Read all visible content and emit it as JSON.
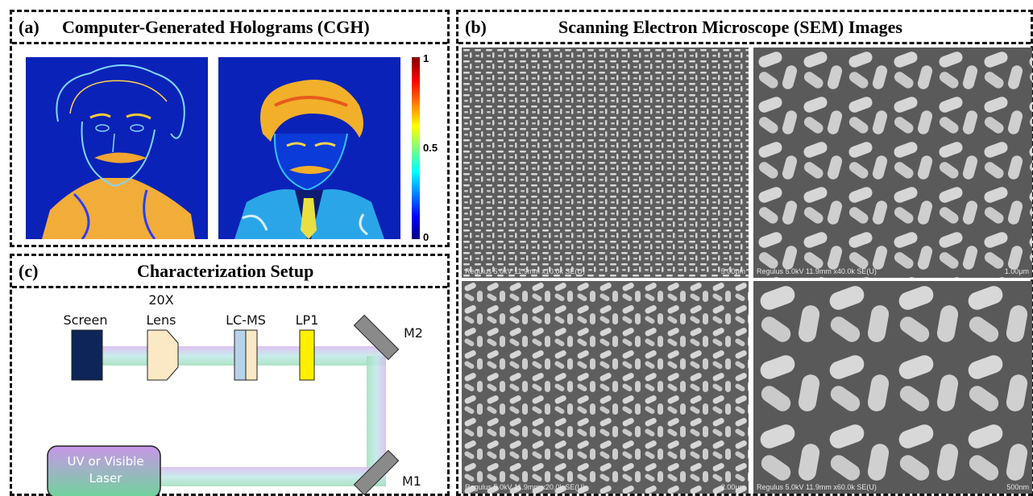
{
  "panel_a": {
    "tag": "(a)",
    "title": "Computer-Generated Holograms (CGH)",
    "colorbar_ticks": [
      "1",
      "0.5",
      "0"
    ]
  },
  "panel_b": {
    "tag": "(b)",
    "title": "Scanning Electron Microscope (SEM) Images",
    "images": [
      {
        "caption": "Regulus 5.0kV 11.9mm x10.0k SE(U)",
        "scale": "5.00μm"
      },
      {
        "caption": "Regulus 5.0kV 11.9mm x40.0k SE(U)",
        "scale": "1.00μm"
      },
      {
        "caption": "Regulus 5.0kV 11.9mm x20.0k SE(U)",
        "scale": "2.00μm"
      },
      {
        "caption": "Regulus 5.0kV 11.9mm x60.0k SE(U)",
        "scale": "500nm"
      }
    ]
  },
  "panel_c": {
    "tag": "(c)",
    "title": "Characterization Setup",
    "components": {
      "screen": "Screen",
      "lens_line1": "20X",
      "lens_line2": "Lens",
      "lcms": "LC-MS",
      "lp1": "LP1",
      "m2": "M2",
      "m1": "M1",
      "laser_line1": "UV or Visible",
      "laser_line2": "Laser"
    }
  },
  "colors": {
    "screen": "#0d2559",
    "lens": "#fbe8c5",
    "lcms_left": "#b6d3ea",
    "lcms_right": "#fbe8c5",
    "lp1": "#ffef00",
    "mirror": "#8a8a8a",
    "laser_top": "#c896e8",
    "laser_bottom": "#6fd49a"
  }
}
